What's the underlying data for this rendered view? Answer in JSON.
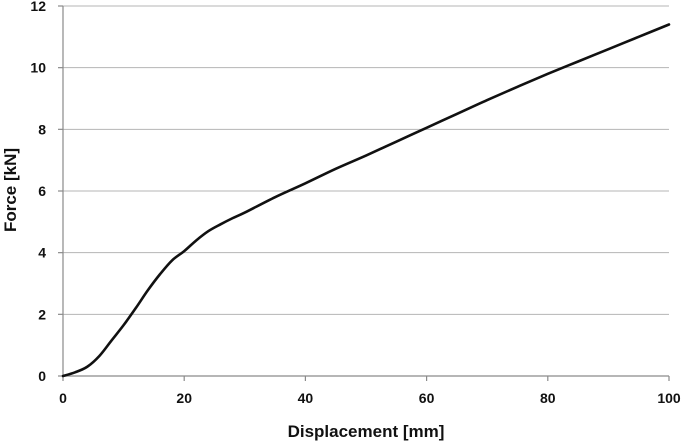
{
  "chart_data": {
    "type": "line",
    "title": "",
    "xlabel": "Displacement [mm]",
    "ylabel": "Force [kN]",
    "xlim": [
      0,
      100
    ],
    "ylim": [
      0,
      12
    ],
    "xticks": [
      0,
      20,
      40,
      60,
      80,
      100
    ],
    "yticks": [
      0,
      2,
      4,
      6,
      8,
      10,
      12
    ],
    "grid": "horizontal",
    "legend": "none",
    "colors": {
      "line": "#111111",
      "grid": "#b5b5b5",
      "axis": "#8a8a8a"
    },
    "series": [
      {
        "x": [
          0,
          2,
          4,
          6,
          8,
          10,
          12,
          14,
          16,
          18,
          20,
          22,
          24,
          26,
          28,
          30,
          35,
          40,
          45,
          50,
          55,
          60,
          65,
          70,
          75,
          80,
          85,
          90,
          95,
          100
        ],
        "y": [
          0,
          0.12,
          0.3,
          0.65,
          1.15,
          1.65,
          2.2,
          2.78,
          3.3,
          3.75,
          4.05,
          4.4,
          4.7,
          4.92,
          5.12,
          5.3,
          5.8,
          6.25,
          6.72,
          7.15,
          7.6,
          8.05,
          8.5,
          8.95,
          9.38,
          9.8,
          10.2,
          10.6,
          11.0,
          11.4
        ]
      }
    ]
  }
}
